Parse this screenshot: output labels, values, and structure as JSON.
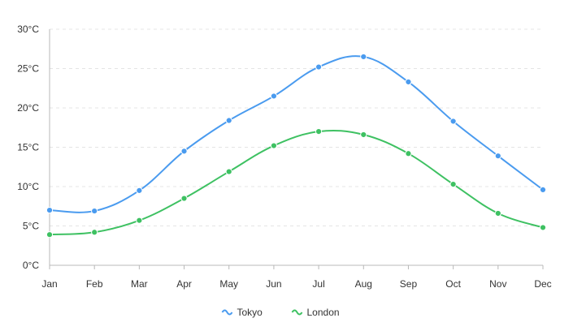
{
  "chart_data": {
    "type": "line",
    "categories": [
      "Jan",
      "Feb",
      "Mar",
      "Apr",
      "May",
      "Jun",
      "Jul",
      "Aug",
      "Sep",
      "Oct",
      "Nov",
      "Dec"
    ],
    "series": [
      {
        "name": "Tokyo",
        "color": "#4a9bef",
        "values": [
          7.0,
          6.9,
          9.5,
          14.5,
          18.4,
          21.5,
          25.2,
          26.5,
          23.3,
          18.3,
          13.9,
          9.6
        ]
      },
      {
        "name": "London",
        "color": "#3ec162",
        "values": [
          3.9,
          4.2,
          5.7,
          8.5,
          11.9,
          15.2,
          17.0,
          16.6,
          14.2,
          10.3,
          6.6,
          4.8
        ]
      }
    ],
    "y_ticks": [
      "0°C",
      "5°C",
      "10°C",
      "15°C",
      "20°C",
      "25°C",
      "30°C"
    ],
    "ylim": [
      0,
      30
    ],
    "grid": true,
    "legend_position": "bottom-center",
    "smooth": true
  }
}
